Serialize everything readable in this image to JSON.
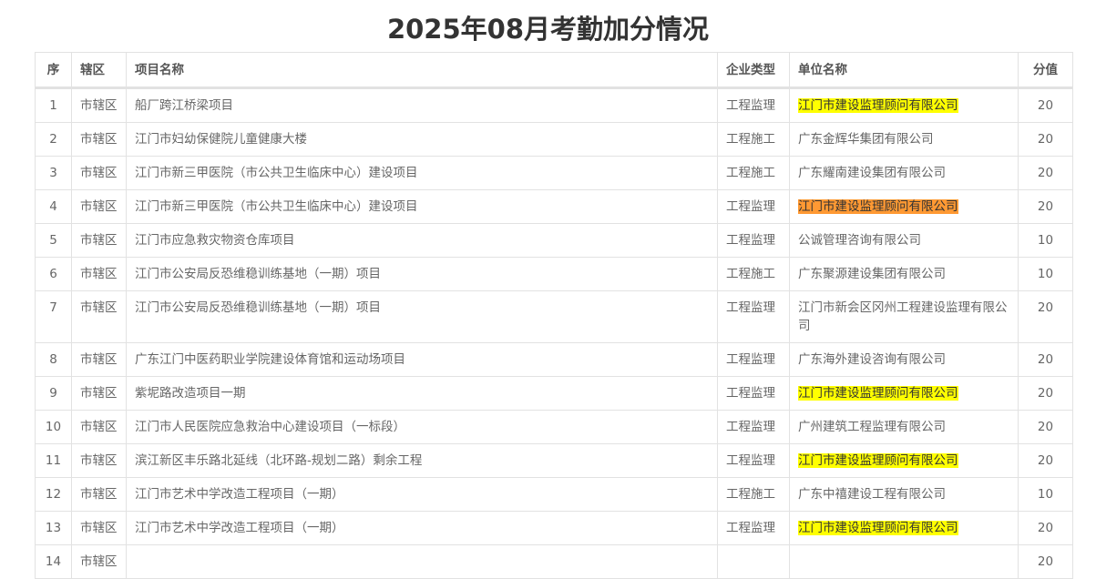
{
  "title": "2025年08月考勤加分情况",
  "colors": {
    "highlight_yellow": "#ffff00",
    "highlight_orange": "#ff9933"
  },
  "table": {
    "headers": [
      "序",
      "辖区",
      "项目名称",
      "企业类型",
      "单位名称",
      "分值"
    ],
    "rows": [
      {
        "no": "1",
        "district": "市辖区",
        "project": "船厂跨江桥梁项目",
        "type": "工程监理",
        "company": "江门市建设监理顾问有限公司",
        "score": "20",
        "highlight": "yellow"
      },
      {
        "no": "2",
        "district": "市辖区",
        "project": "江门市妇幼保健院儿童健康大楼",
        "type": "工程施工",
        "company": "广东金辉华集团有限公司",
        "score": "20",
        "highlight": ""
      },
      {
        "no": "3",
        "district": "市辖区",
        "project": "江门市新三甲医院（市公共卫生临床中心）建设项目",
        "type": "工程施工",
        "company": "广东耀南建设集团有限公司",
        "score": "20",
        "highlight": ""
      },
      {
        "no": "4",
        "district": "市辖区",
        "project": "江门市新三甲医院（市公共卫生临床中心）建设项目",
        "type": "工程监理",
        "company": "江门市建设监理顾问有限公司",
        "score": "20",
        "highlight": "orange"
      },
      {
        "no": "5",
        "district": "市辖区",
        "project": "江门市应急救灾物资仓库项目",
        "type": "工程监理",
        "company": "公诚管理咨询有限公司",
        "score": "10",
        "highlight": ""
      },
      {
        "no": "6",
        "district": "市辖区",
        "project": "江门市公安局反恐维稳训练基地（一期）项目",
        "type": "工程施工",
        "company": "广东聚源建设集团有限公司",
        "score": "10",
        "highlight": ""
      },
      {
        "no": "7",
        "district": "市辖区",
        "project": "江门市公安局反恐维稳训练基地（一期）项目",
        "type": "工程监理",
        "company": "江门市新会区冈州工程建设监理有限公司",
        "score": "20",
        "highlight": ""
      },
      {
        "no": "8",
        "district": "市辖区",
        "project": "广东江门中医药职业学院建设体育馆和运动场项目",
        "type": "工程监理",
        "company": "广东海外建设咨询有限公司",
        "score": "20",
        "highlight": ""
      },
      {
        "no": "9",
        "district": "市辖区",
        "project": "紫坭路改造项目一期",
        "type": "工程监理",
        "company": "江门市建设监理顾问有限公司",
        "score": "20",
        "highlight": "yellow"
      },
      {
        "no": "10",
        "district": "市辖区",
        "project": "江门市人民医院应急救治中心建设项目（一标段）",
        "type": "工程监理",
        "company": "广州建筑工程监理有限公司",
        "score": "20",
        "highlight": ""
      },
      {
        "no": "11",
        "district": "市辖区",
        "project": "滨江新区丰乐路北延线（北环路-规划二路）剩余工程",
        "type": "工程监理",
        "company": "江门市建设监理顾问有限公司",
        "score": "20",
        "highlight": "yellow"
      },
      {
        "no": "12",
        "district": "市辖区",
        "project": "江门市艺术中学改造工程项目（一期）",
        "type": "工程施工",
        "company": "广东中禧建设工程有限公司",
        "score": "10",
        "highlight": ""
      },
      {
        "no": "13",
        "district": "市辖区",
        "project": "江门市艺术中学改造工程项目（一期）",
        "type": "工程监理",
        "company": "江门市建设监理顾问有限公司",
        "score": "20",
        "highlight": "yellow"
      },
      {
        "no": "14",
        "district": "市辖区",
        "project": "",
        "type": "",
        "company": "",
        "score": "20",
        "highlight": ""
      }
    ]
  }
}
